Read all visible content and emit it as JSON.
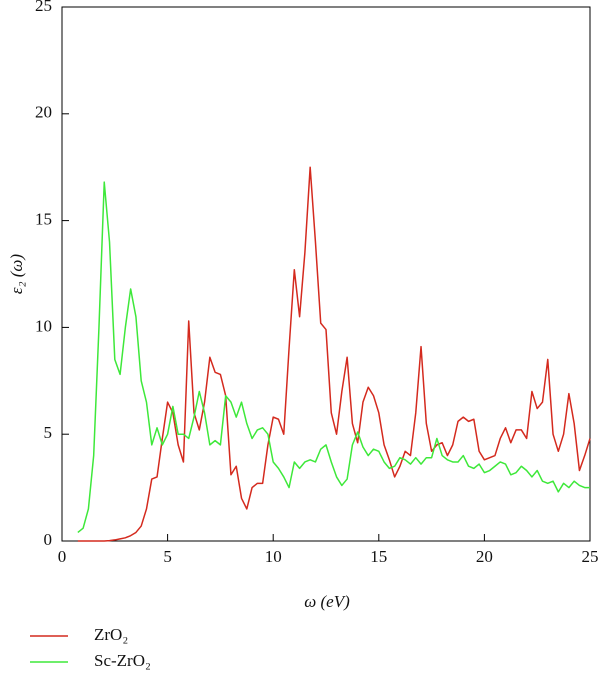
{
  "chart_data": {
    "type": "line",
    "xlabel": "ω (eV)",
    "ylabel": "ε₂ (ω)",
    "xlim": [
      0,
      25
    ],
    "ylim": [
      0,
      25
    ],
    "xticks": [
      0,
      5,
      10,
      15,
      20,
      25
    ],
    "yticks": [
      0,
      5,
      10,
      15,
      20,
      25
    ],
    "x": [
      0.75,
      1,
      1.25,
      1.5,
      1.75,
      2,
      2.25,
      2.5,
      2.75,
      3,
      3.25,
      3.5,
      3.75,
      4,
      4.25,
      4.5,
      4.75,
      5,
      5.25,
      5.5,
      5.75,
      6,
      6.25,
      6.5,
      6.75,
      7,
      7.25,
      7.5,
      7.75,
      8,
      8.25,
      8.5,
      8.75,
      9,
      9.25,
      9.5,
      9.75,
      10,
      10.25,
      10.5,
      10.75,
      11,
      11.25,
      11.5,
      11.75,
      12,
      12.25,
      12.5,
      12.75,
      13,
      13.25,
      13.5,
      13.75,
      14,
      14.25,
      14.5,
      14.75,
      15,
      15.25,
      15.5,
      15.75,
      16,
      16.25,
      16.5,
      16.75,
      17,
      17.25,
      17.5,
      17.75,
      18,
      18.25,
      18.5,
      18.75,
      19,
      19.25,
      19.5,
      19.75,
      20,
      20.25,
      20.5,
      20.75,
      21,
      21.25,
      21.5,
      21.75,
      22,
      22.25,
      22.5,
      22.75,
      23,
      23.25,
      23.5,
      23.75,
      24,
      24.25,
      24.5,
      24.75,
      25
    ],
    "series": [
      {
        "name": "ZrO₂",
        "color": "#d42a1e",
        "values": [
          0,
          0,
          0,
          0,
          0,
          0,
          0.02,
          0.05,
          0.1,
          0.15,
          0.25,
          0.4,
          0.7,
          1.5,
          2.9,
          3.0,
          4.8,
          6.5,
          6.0,
          4.5,
          3.7,
          10.3,
          6.0,
          5.2,
          6.5,
          8.6,
          7.9,
          7.8,
          6.8,
          3.1,
          3.5,
          2.0,
          1.5,
          2.5,
          2.7,
          2.7,
          4.5,
          5.8,
          5.7,
          5.0,
          9.0,
          12.7,
          10.5,
          13.5,
          17.5,
          14.0,
          10.2,
          9.9,
          6.0,
          5.0,
          7.0,
          8.6,
          5.5,
          4.6,
          6.5,
          7.2,
          6.8,
          6.0,
          4.5,
          3.8,
          3.0,
          3.5,
          4.2,
          4.0,
          6.0,
          9.1,
          5.5,
          4.2,
          4.5,
          4.6,
          4.0,
          4.5,
          5.6,
          5.8,
          5.6,
          5.7,
          4.2,
          3.8,
          3.9,
          4.0,
          4.8,
          5.3,
          4.6,
          5.2,
          5.2,
          4.8,
          7.0,
          6.2,
          6.5,
          8.5,
          5.0,
          4.2,
          5.0,
          6.9,
          5.5,
          3.3,
          4.0,
          4.8
        ]
      },
      {
        "name": "Sc-ZrO₂",
        "color": "#3ee83a",
        "values": [
          0.4,
          0.6,
          1.5,
          4.0,
          10,
          16.8,
          14,
          8.5,
          7.8,
          10,
          11.8,
          10.5,
          7.5,
          6.5,
          4.5,
          5.3,
          4.5,
          5.0,
          6.3,
          5.0,
          5.0,
          4.8,
          5.8,
          7.0,
          6.0,
          4.5,
          4.7,
          4.5,
          6.8,
          6.5,
          5.8,
          6.5,
          5.5,
          4.8,
          5.2,
          5.3,
          5.0,
          3.7,
          3.4,
          3.0,
          2.5,
          3.7,
          3.4,
          3.7,
          3.8,
          3.7,
          4.3,
          4.5,
          3.7,
          3.0,
          2.6,
          2.9,
          4.5,
          5.1,
          4.4,
          4.0,
          4.3,
          4.2,
          3.7,
          3.4,
          3.5,
          3.9,
          3.8,
          3.6,
          3.9,
          3.6,
          3.9,
          3.9,
          4.8,
          4.0,
          3.8,
          3.7,
          3.7,
          4.0,
          3.5,
          3.4,
          3.6,
          3.2,
          3.3,
          3.5,
          3.7,
          3.6,
          3.1,
          3.2,
          3.5,
          3.3,
          3.0,
          3.3,
          2.8,
          2.7,
          2.8,
          2.3,
          2.7,
          2.5,
          2.8,
          2.6,
          2.5,
          2.5
        ]
      }
    ]
  }
}
